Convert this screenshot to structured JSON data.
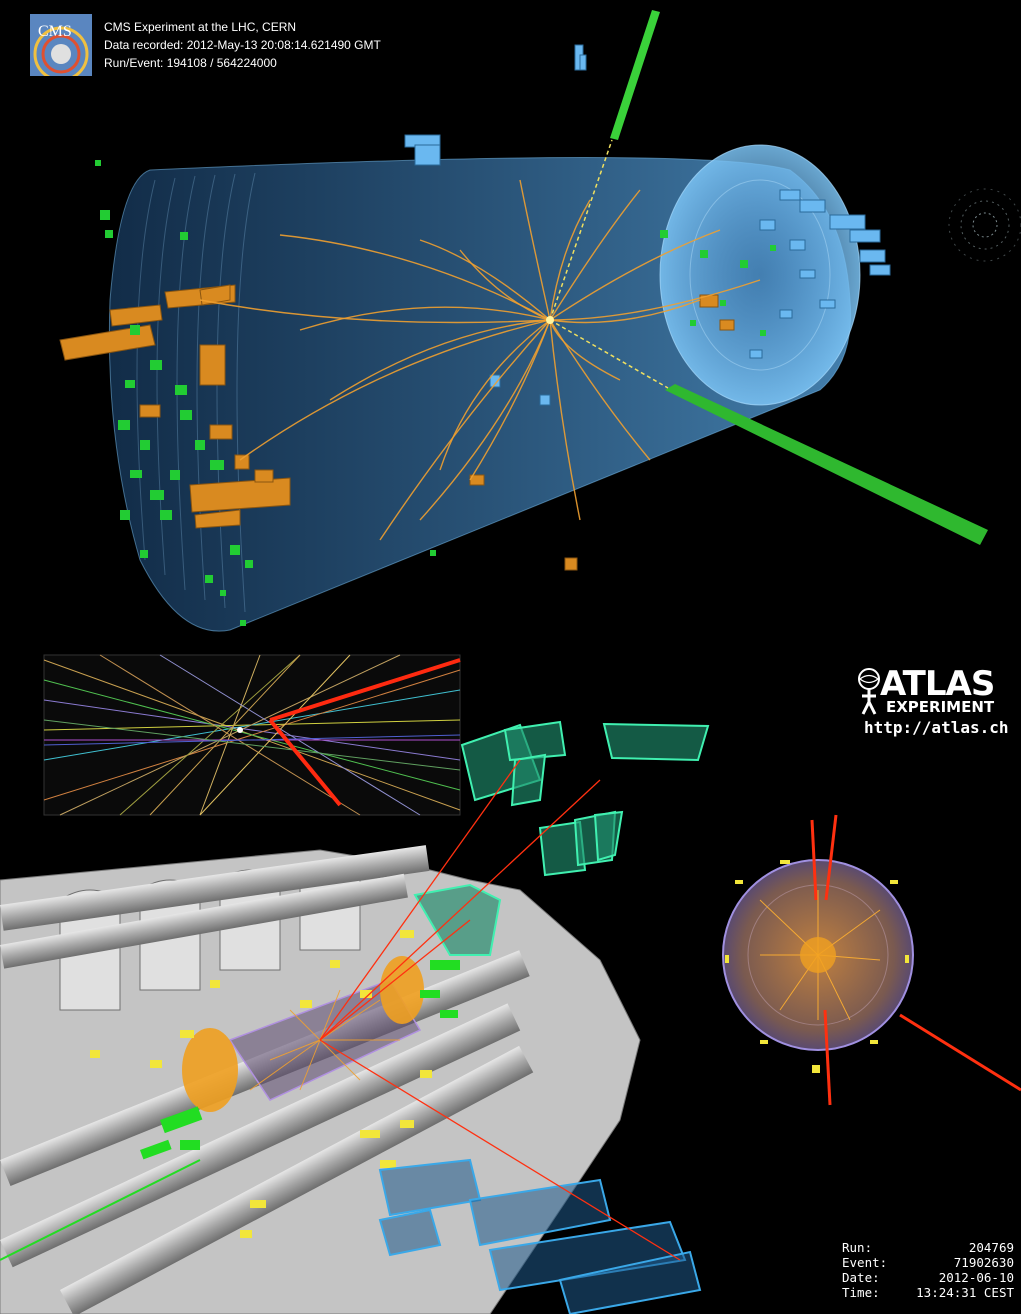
{
  "cms": {
    "logo_text": "CMS",
    "line1": "CMS Experiment at the LHC, CERN",
    "line2": "Data recorded: 2012-May-13 20:08:14.621490 GMT",
    "line3": "Run/Event: 194108 / 564224000"
  },
  "atlas": {
    "word": "ATLAS",
    "sub": "EXPERIMENT",
    "url": "http://atlas.ch"
  },
  "event_info": {
    "run_label": "Run:",
    "run_value": "204769",
    "event_label": "Event:",
    "event_value": "71902630",
    "date_label": "Date:",
    "date_value": "2012-06-10",
    "time_label": "Time:",
    "time_value": "13:24:31 CEST"
  },
  "colors": {
    "cms_barrel": "#5aa9e6",
    "tracks": "#f0a030",
    "hcal_orange": "#e08a1e",
    "ecal_green": "#22cc33",
    "muon_green": "#2fd07a",
    "atlas_gray": "#b8b8b8",
    "atlas_yellow": "#f2e63a",
    "muon_blue": "#3aa8e8",
    "photon_red": "#ff3010"
  }
}
